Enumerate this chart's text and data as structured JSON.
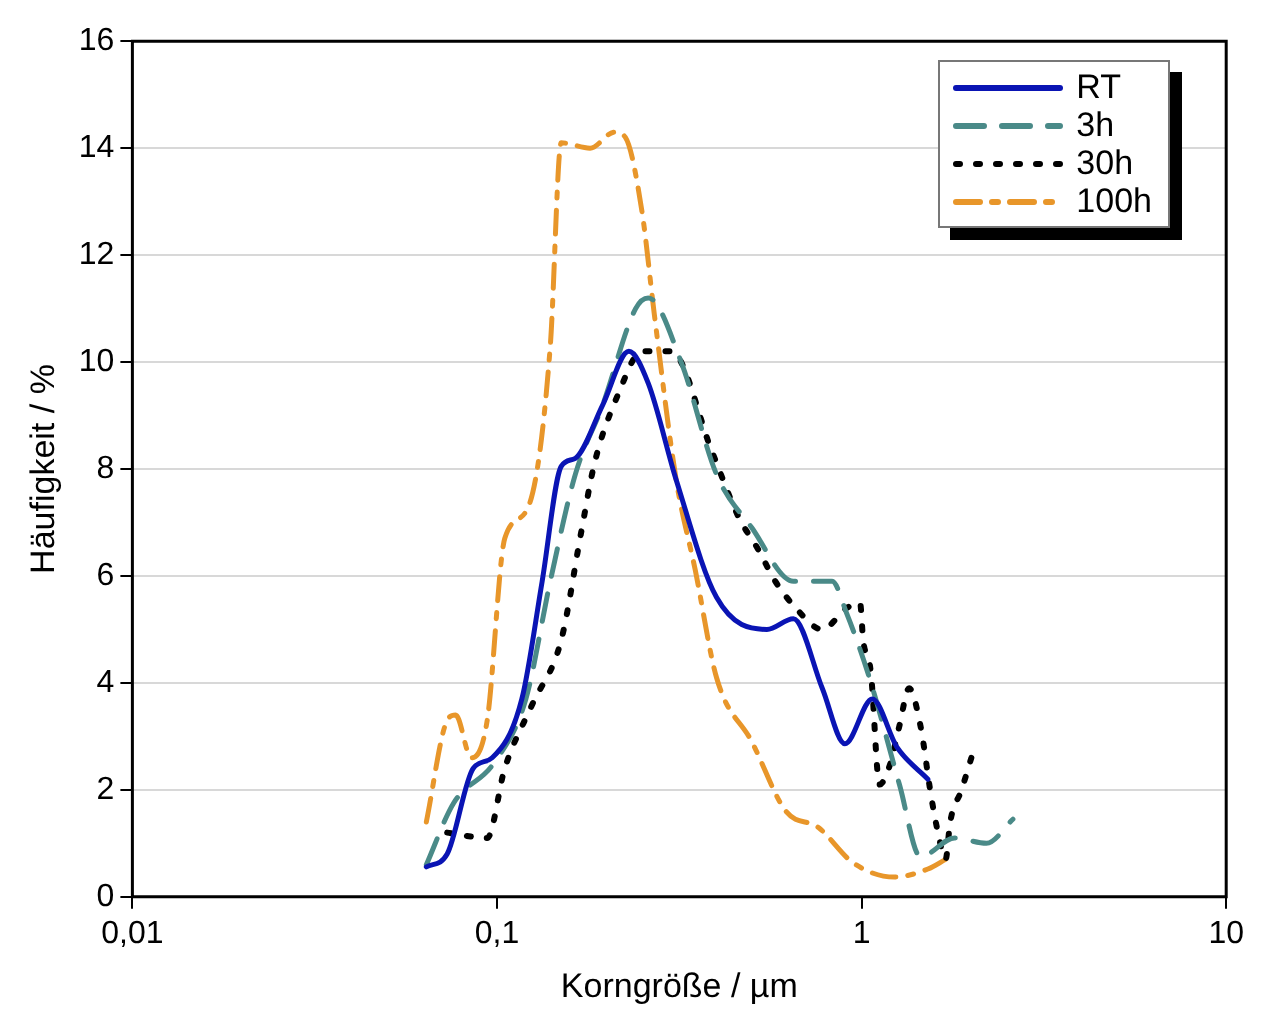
{
  "chart_data": {
    "type": "line",
    "xlabel": "Korngröße / µm",
    "ylabel": "Häufigkeit / %",
    "log": "x",
    "grid": "y",
    "legend": "top right",
    "xlim": [
      0.01,
      10
    ],
    "xticks": [
      {
        "value": 0.01,
        "label": "0,01"
      },
      {
        "value": 0.1,
        "label": "0,1"
      },
      {
        "value": 1,
        "label": "1"
      },
      {
        "value": 10,
        "label": "10"
      }
    ],
    "ylim": [
      0,
      16
    ],
    "yticks": [
      0,
      2,
      4,
      6,
      8,
      10,
      12,
      14,
      16
    ],
    "series": [
      {
        "name": "RT",
        "color": "#0a14b4",
        "line_style": "solid",
        "x": [
          0.064,
          0.073,
          0.086,
          0.097,
          0.117,
          0.133,
          0.15,
          0.164,
          0.195,
          0.23,
          0.26,
          0.31,
          0.4,
          0.55,
          0.65,
          0.78,
          0.9,
          1.07,
          1.25,
          1.52
        ],
        "values": [
          0.56,
          0.8,
          2.4,
          2.6,
          3.7,
          5.9,
          8.05,
          8.2,
          9.2,
          10.2,
          9.6,
          7.8,
          5.6,
          5.0,
          5.2,
          3.9,
          2.86,
          3.7,
          2.8,
          2.2
        ]
      },
      {
        "name": "3h",
        "color": "#4a8a88",
        "line_style": "dashed",
        "x": [
          0.064,
          0.076,
          0.098,
          0.12,
          0.14,
          0.164,
          0.195,
          0.24,
          0.26,
          0.32,
          0.4,
          0.5,
          0.65,
          0.83,
          0.91,
          1.05,
          1.27,
          1.45,
          1.8,
          2.2,
          2.6
        ],
        "values": [
          0.6,
          1.75,
          2.5,
          3.7,
          5.9,
          7.9,
          9.2,
          11.0,
          11.2,
          10.0,
          7.9,
          6.9,
          5.9,
          5.9,
          5.3,
          4.1,
          2.1,
          0.75,
          1.1,
          1.0,
          1.45
        ]
      },
      {
        "name": "30h",
        "color": "#000000",
        "line_style": "dotted",
        "x": [
          0.073,
          0.094,
          0.105,
          0.125,
          0.15,
          0.17,
          0.185,
          0.215,
          0.25,
          0.3,
          0.39,
          0.46,
          0.52,
          0.58,
          0.66,
          0.78,
          0.91,
          0.99,
          1.01,
          1.06,
          1.12,
          1.2,
          1.27,
          1.35,
          1.45,
          1.55,
          1.62,
          1.7,
          1.75,
          1.88,
          2.0
        ],
        "values": [
          1.2,
          1.1,
          2.4,
          3.6,
          4.8,
          6.8,
          8.1,
          9.4,
          10.2,
          10.2,
          8.3,
          7.1,
          6.5,
          5.9,
          5.4,
          5.0,
          5.4,
          5.5,
          4.8,
          4.2,
          2.1,
          2.5,
          3.2,
          3.9,
          3.2,
          1.9,
          1.2,
          0.7,
          1.4,
          2.0,
          2.6
        ]
      },
      {
        "name": "100h",
        "color": "#e8962a",
        "line_style": "dashdot",
        "x": [
          0.064,
          0.073,
          0.077,
          0.085,
          0.094,
          0.105,
          0.122,
          0.14,
          0.15,
          0.18,
          0.21,
          0.225,
          0.25,
          0.27,
          0.31,
          0.35,
          0.4,
          0.5,
          0.62,
          0.76,
          0.95,
          1.23,
          1.52,
          1.7
        ],
        "values": [
          1.4,
          3.3,
          3.4,
          2.6,
          3.3,
          6.7,
          7.3,
          10.3,
          14.1,
          14.0,
          14.3,
          14.2,
          12.8,
          10.9,
          7.8,
          6.1,
          4.1,
          2.9,
          1.6,
          1.3,
          0.63,
          0.37,
          0.52,
          0.7
        ]
      }
    ]
  }
}
